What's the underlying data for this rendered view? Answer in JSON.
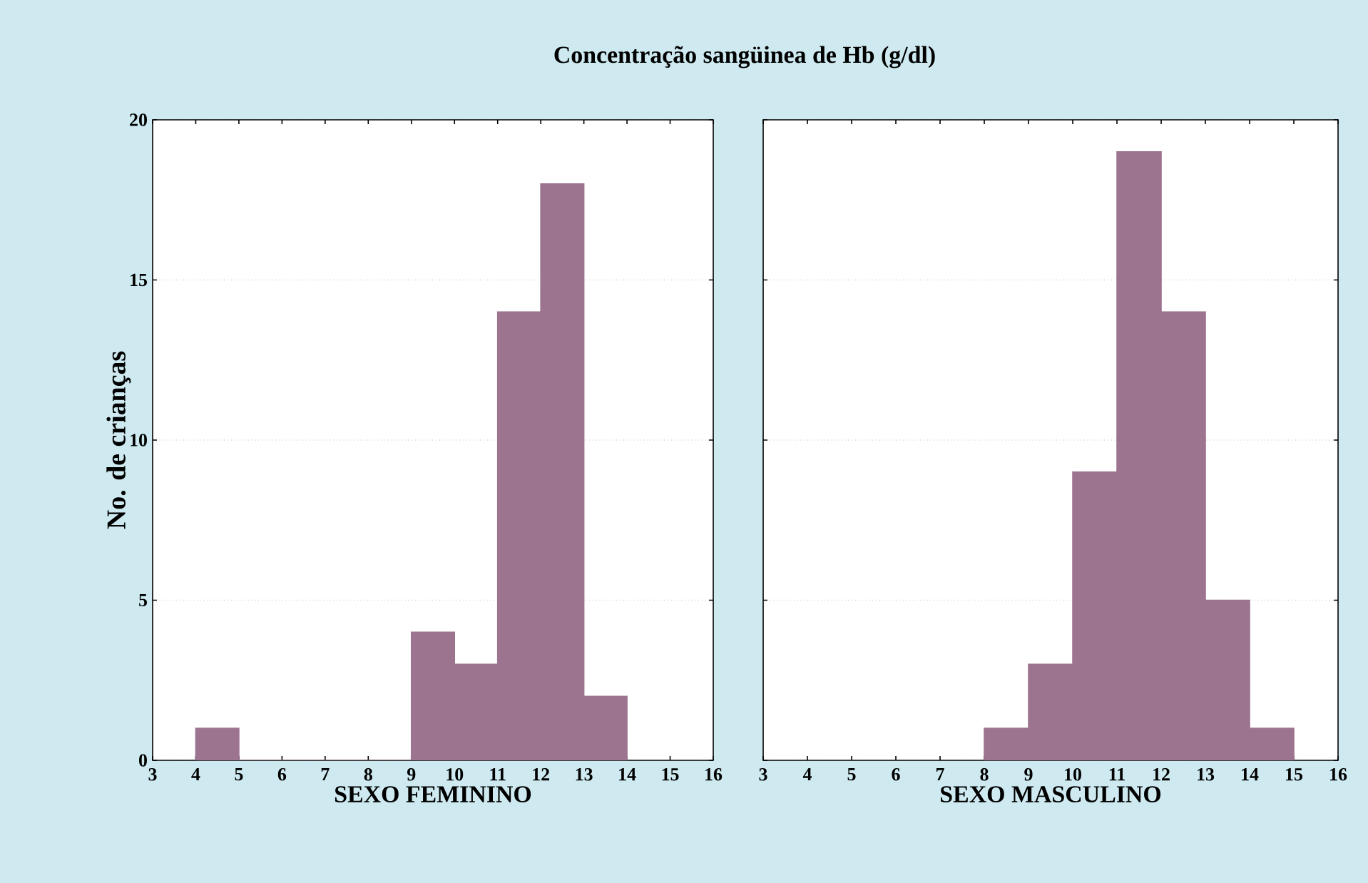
{
  "chart_data": [
    {
      "type": "histogram",
      "title": "Concentração sangüinea de Hb (g/dl)",
      "xlabel": "SEXO FEMININO",
      "ylabel": "No. de crianças",
      "bins": [
        4,
        5,
        6,
        7,
        8,
        9,
        10,
        11,
        12,
        13,
        14
      ],
      "values": [
        1,
        0,
        0,
        0,
        0,
        4,
        3,
        14,
        18,
        2
      ],
      "color": "#9c7490",
      "xlim": [
        3,
        16
      ],
      "xticks": [
        3,
        4,
        5,
        6,
        7,
        8,
        9,
        10,
        11,
        12,
        13,
        14,
        15,
        16
      ],
      "ylim": [
        0,
        20
      ],
      "yticks": [
        0,
        5,
        10,
        15,
        20
      ],
      "grid": "y"
    },
    {
      "type": "histogram",
      "xlabel": "SEXO MASCULINO",
      "bins": [
        8,
        9,
        10,
        11,
        12,
        13,
        14,
        15
      ],
      "values": [
        1,
        3,
        9,
        19,
        14,
        5,
        1
      ],
      "color": "#9c7490",
      "xlim": [
        3,
        16
      ],
      "xticks": [
        3,
        4,
        5,
        6,
        7,
        8,
        9,
        10,
        11,
        12,
        13,
        14,
        15,
        16
      ],
      "ylim": [
        0,
        20
      ],
      "yticks": [
        0,
        5,
        10,
        15,
        20
      ],
      "grid": "y",
      "tick_labels": "x"
    }
  ]
}
